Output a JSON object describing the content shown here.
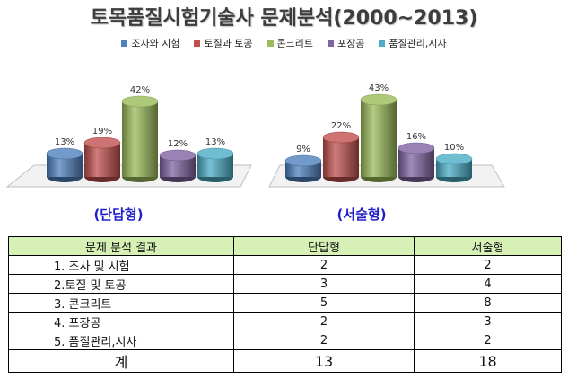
{
  "title": "토목품질시험기술사 문제분석(2000~2013)",
  "legend": [
    {
      "label": "조사와 시험",
      "color": "#4f81bd"
    },
    {
      "label": "토질과 토공",
      "color": "#c0504d"
    },
    {
      "label": "콘크리트",
      "color": "#9bbb59"
    },
    {
      "label": "포장공",
      "color": "#8064a2"
    },
    {
      "label": "품질관리,시사",
      "color": "#4bacc6"
    }
  ],
  "chart_data": [
    {
      "type": "bar",
      "title": "(단답형)",
      "categories": [
        "조사와 시험",
        "토질과 토공",
        "콘크리트",
        "포장공",
        "품질관리,시사"
      ],
      "values": [
        13,
        19,
        42,
        12,
        13
      ],
      "labels": [
        "13%",
        "19%",
        "42%",
        "12%",
        "13%"
      ],
      "colors": [
        "#4f81bd",
        "#c0504d",
        "#9bbb59",
        "#8064a2",
        "#4bacc6"
      ],
      "ylim": [
        0,
        45
      ]
    },
    {
      "type": "bar",
      "title": "(서술형)",
      "categories": [
        "조사와 시험",
        "토질과 토공",
        "콘크리트",
        "포장공",
        "품질관리,시사"
      ],
      "values": [
        9,
        22,
        43,
        16,
        10
      ],
      "labels": [
        "9%",
        "22%",
        "43%",
        "16%",
        "10%"
      ],
      "colors": [
        "#4f81bd",
        "#c0504d",
        "#9bbb59",
        "#8064a2",
        "#4bacc6"
      ],
      "ylim": [
        0,
        45
      ]
    }
  ],
  "table": {
    "headers": [
      "문제 분석 결과",
      "단답형",
      "서술형"
    ],
    "rows": [
      [
        "1. 조사 및 시험",
        "2",
        "2"
      ],
      [
        "2.토질 및 토공",
        "3",
        "4"
      ],
      [
        "3. 콘크리트",
        "5",
        "8"
      ],
      [
        "4. 포장공",
        "2",
        "3"
      ],
      [
        "5. 품질관리,시사",
        "2",
        "2"
      ]
    ],
    "total": [
      "계",
      "13",
      "18"
    ]
  }
}
